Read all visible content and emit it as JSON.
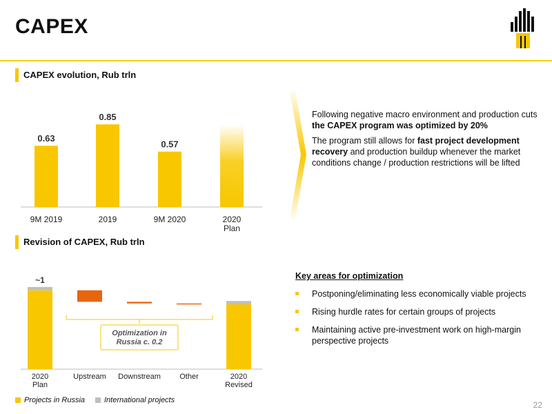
{
  "page": {
    "title": "CAPEX",
    "page_number": "22"
  },
  "colors": {
    "accent": "#f8c700",
    "orange": "#e8650d",
    "grey": "#bfbfbf",
    "rule": "#f3d400"
  },
  "sections": {
    "evolution_title": "CAPEX evolution, Rub trln",
    "revision_title": "Revision of CAPEX, Rub trln"
  },
  "chart_data": [
    {
      "type": "bar",
      "title": "CAPEX evolution, Rub trln",
      "categories": [
        "9M 2019",
        "2019",
        "9M 2020",
        "2020|Plan"
      ],
      "values": [
        0.63,
        0.85,
        0.57,
        null
      ],
      "value_labels": [
        "0.63",
        "0.85",
        "0.57",
        ""
      ],
      "ylim": [
        0,
        1.1
      ],
      "grid": false
    },
    {
      "type": "bar",
      "title": "Revision of CAPEX, Rub trln",
      "categories": [
        "2020|Plan",
        "Upstream",
        "Downstream",
        "Other",
        "2020|Revised"
      ],
      "series": [
        {
          "name": "Projects in Russia",
          "kind": "total",
          "values": [
            0.96,
            null,
            null,
            null,
            0.79
          ]
        },
        {
          "name": "International projects",
          "kind": "total",
          "values": [
            0.04,
            null,
            null,
            null,
            0.04
          ]
        },
        {
          "name": "Optimization",
          "kind": "decrease",
          "values": [
            null,
            0.14,
            0.02,
            0.005,
            null
          ]
        }
      ],
      "value_labels": [
        "~1",
        "",
        "",
        "",
        ""
      ],
      "annotation": "Optimization in|Russia c. 0.2",
      "ylim": [
        0,
        1.05
      ],
      "grid": false
    }
  ],
  "legend": [
    {
      "label": "Projects in Russia",
      "color": "#f8c700"
    },
    {
      "label": "International projects",
      "color": "#bfbfbf"
    }
  ],
  "text_block_1": {
    "p1_pre": "Following negative macro environment and production cuts ",
    "p1_bold": "the CAPEX program was optimized by 20%",
    "p2_pre": "The program still allows for ",
    "p2_bold": "fast project development recovery",
    "p2_post": " and production buildup whenever the market conditions change / production restrictions will be lifted"
  },
  "key_areas": {
    "title": "Key areas for optimization",
    "items": [
      "Postponing/eliminating less economically viable projects",
      "Rising hurdle rates for certain groups of projects",
      "Maintaining active pre-investment work on high-margin perspective projects"
    ]
  }
}
